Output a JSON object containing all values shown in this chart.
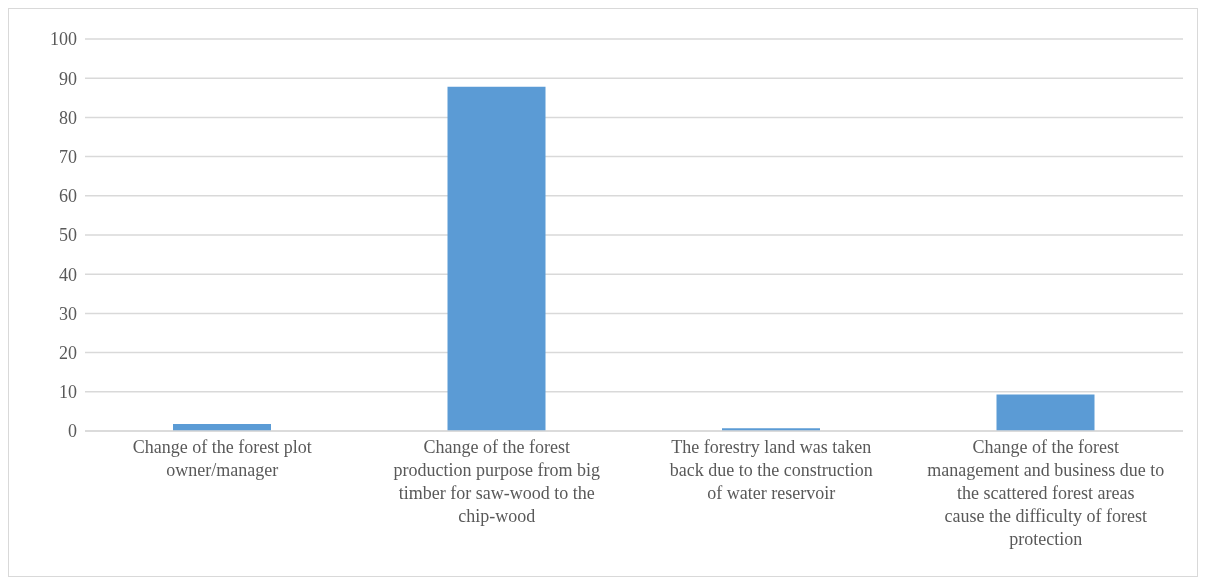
{
  "chart_data": {
    "type": "bar",
    "categories": [
      "Change of the forest plot owner/manager",
      "Change of the forest production purpose from big timber for saw-wood to the chip-wood",
      "The forestry land was taken back due to the construction of water reservoir",
      "Change of the forest management and business due to the scattered forest areas cause the difficulty of forest protection"
    ],
    "values": [
      1.8,
      87.8,
      0.7,
      9.3
    ],
    "color": "#5b9bd5",
    "ylim": [
      0,
      100
    ],
    "yticks": [
      0,
      10,
      20,
      30,
      40,
      50,
      60,
      70,
      80,
      90,
      100
    ],
    "grid": "y"
  }
}
